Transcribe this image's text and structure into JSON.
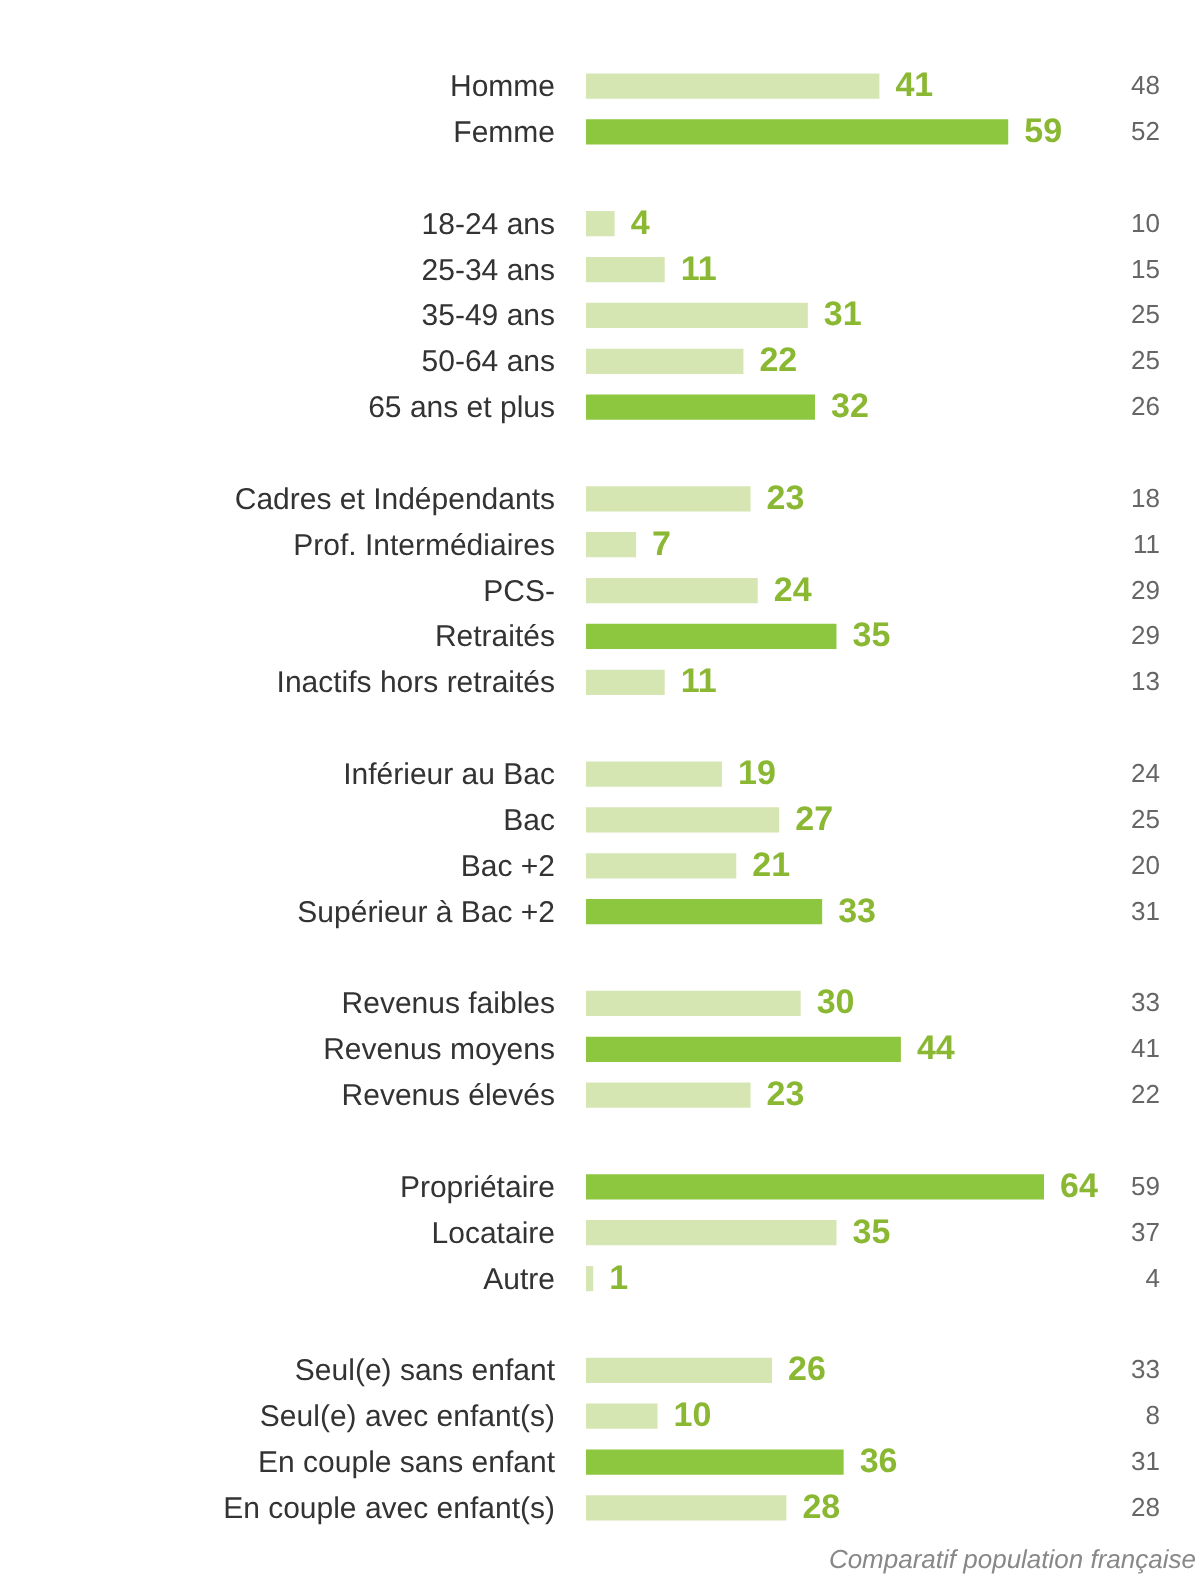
{
  "chart_data": {
    "type": "bar",
    "orientation": "horizontal",
    "data_labels": true,
    "categories": [
      "Homme",
      "Femme",
      null,
      "18-24 ans",
      "25-34 ans",
      "35-49 ans",
      "50-64 ans",
      "65 ans et plus",
      null,
      "Cadres et Indépendants",
      "Prof. Intermédiaires",
      "PCS-",
      "Retraités",
      "Inactifs hors retraités",
      null,
      "Inférieur au Bac",
      "Bac",
      "Bac +2",
      "Supérieur à Bac +2",
      null,
      "Revenus faibles",
      "Revenus moyens",
      "Revenus élevés",
      null,
      "Propriétaire",
      "Locataire",
      "Autre",
      null,
      "Seul(e) sans enfant",
      "Seul(e) avec enfant(s)",
      "En couple sans enfant",
      "En couple avec enfant(s)"
    ],
    "values": [
      41,
      59,
      null,
      4,
      11,
      31,
      22,
      32,
      null,
      23,
      7,
      24,
      35,
      11,
      null,
      19,
      27,
      21,
      33,
      null,
      30,
      44,
      23,
      null,
      64,
      35,
      1,
      null,
      26,
      10,
      36,
      28
    ],
    "colors": [
      "#d6e6b3",
      "#8dc63f",
      null,
      "#d6e6b3",
      "#d6e6b3",
      "#d6e6b3",
      "#d6e6b3",
      "#8dc63f",
      null,
      "#d6e6b3",
      "#d6e6b3",
      "#d6e6b3",
      "#8dc63f",
      "#d6e6b3",
      null,
      "#d6e6b3",
      "#d6e6b3",
      "#d6e6b3",
      "#8dc63f",
      null,
      "#d6e6b3",
      "#8dc63f",
      "#d6e6b3",
      null,
      "#8dc63f",
      "#d6e6b3",
      "#d6e6b3",
      null,
      "#d6e6b3",
      "#d6e6b3",
      "#8dc63f",
      "#d6e6b3"
    ],
    "annotations": [
      "48",
      "52",
      "10",
      "15",
      "25",
      "25",
      "26",
      "18",
      "11",
      "29",
      "29",
      "13",
      "24",
      "25",
      "20",
      "31",
      "33",
      "41",
      "22",
      "59",
      "37",
      "4",
      "33",
      "8",
      "31",
      "28",
      "Comparatif population française"
    ]
  }
}
